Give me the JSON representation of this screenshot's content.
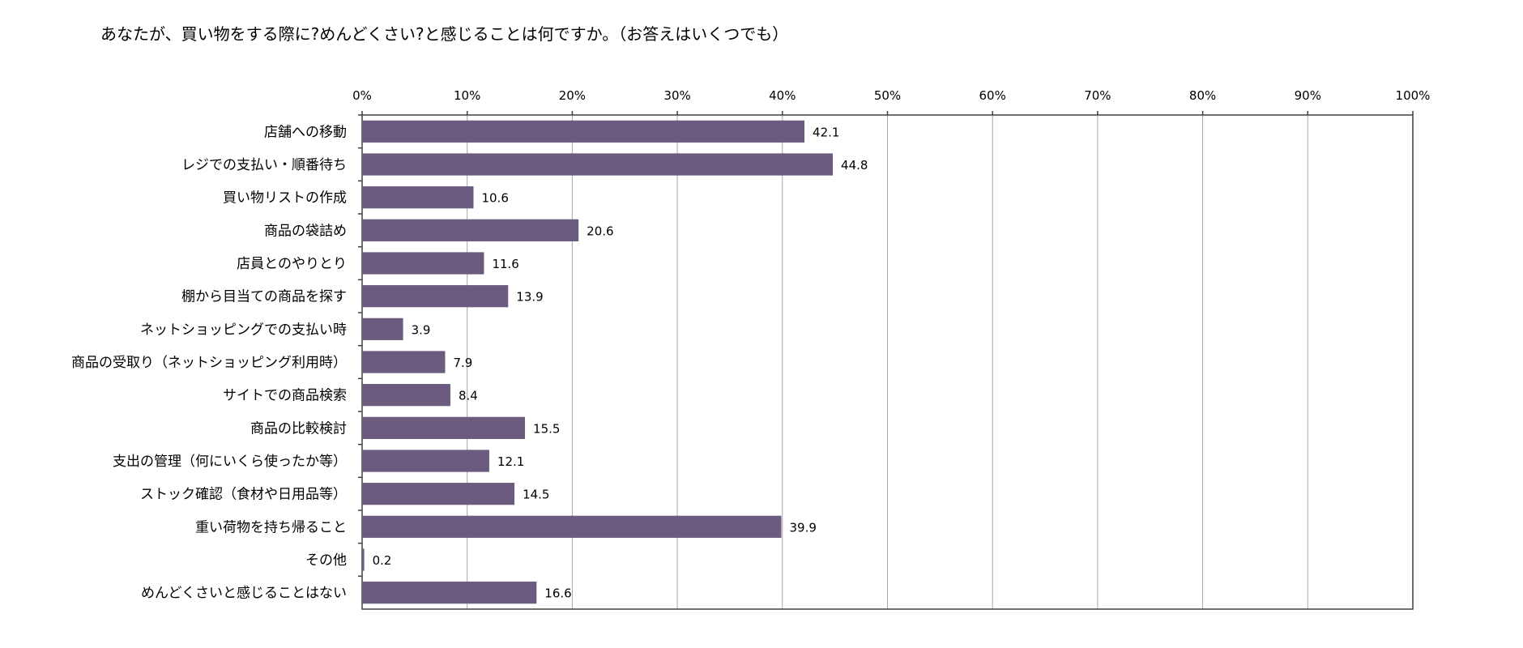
{
  "chart_data": {
    "type": "bar",
    "orientation": "horizontal",
    "title": "あなたが、買い物をする際に?めんどくさい?と感じることは何ですか。（お答えはいくつでも）",
    "xlim": [
      0,
      100
    ],
    "xticks": [
      "0%",
      "10%",
      "20%",
      "30%",
      "40%",
      "50%",
      "60%",
      "70%",
      "80%",
      "90%",
      "100%"
    ],
    "categories": [
      "店舗への移動",
      "レジでの支払い・順番待ち",
      "買い物リストの作成",
      "商品の袋詰め",
      "店員とのやりとり",
      "棚から目当ての商品を探す",
      "ネットショッピングでの支払い時",
      "商品の受取り（ネットショッピング利用時）",
      "サイトでの商品検索",
      "商品の比較検討",
      "支出の管理（何にいくら使ったか等）",
      "ストック確認（食材や日用品等）",
      "重い荷物を持ち帰ること",
      "その他",
      "めんどくさいと感じることはない"
    ],
    "values": [
      42.1,
      44.8,
      10.6,
      20.6,
      11.6,
      13.9,
      3.9,
      7.9,
      8.4,
      15.5,
      12.1,
      14.5,
      39.9,
      0.2,
      16.6
    ],
    "value_labels": [
      "42.1",
      "44.8",
      "10.6",
      "20.6",
      "11.6",
      "13.9",
      "3.9",
      "7.9",
      "8.4",
      "15.5",
      "12.1",
      "14.5",
      "39.9",
      "0.2",
      "16.6"
    ],
    "bar_color": "#6b5b7f",
    "grid": true,
    "legend": "none"
  }
}
